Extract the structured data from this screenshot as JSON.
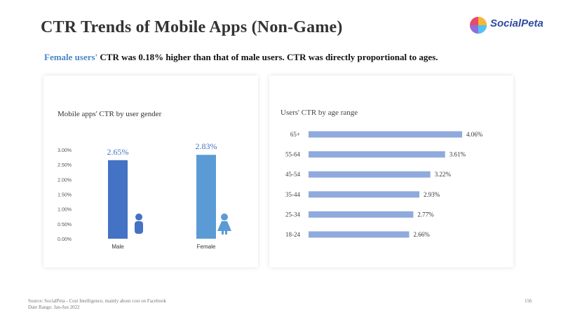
{
  "title": "CTR Trends of Mobile Apps (Non-Game)",
  "logo": {
    "text": "SocialPeta"
  },
  "subtitle": {
    "highlight": "Female users'",
    "rest": " CTR was 0.18% higher than that of male users. CTR was directly proportional to ages."
  },
  "footer": {
    "source": "Source: SocialPeta - Cost Intelligence, mainly about cost on Facebook",
    "date_range": "Date Range: Jan-Jun 2022"
  },
  "page_number": "156",
  "colors": {
    "male": "#4472c4",
    "female": "#5b9bd5",
    "age_bar": "#8faadc",
    "label_blue": "#4472c4"
  },
  "chart_data": [
    {
      "type": "bar",
      "title": "Mobile apps' CTR by user gender",
      "categories": [
        "Male",
        "Female"
      ],
      "values": [
        2.65,
        2.83
      ],
      "value_labels": [
        "2.65%",
        "2.83%"
      ],
      "ylim": [
        0,
        3.0
      ],
      "yticks": [
        0,
        0.5,
        1.0,
        1.5,
        2.0,
        2.5,
        3.0
      ],
      "ytick_labels": [
        "0.00%",
        "0.50%",
        "1.00%",
        "1.50%",
        "2.00%",
        "2.50%",
        "3.00%"
      ],
      "xlabel": "",
      "ylabel": ""
    },
    {
      "type": "bar",
      "orientation": "horizontal",
      "title": "Users' CTR by age range",
      "categories": [
        "65+",
        "55-64",
        "45-54",
        "35-44",
        "25-34",
        "18-24"
      ],
      "values": [
        4.06,
        3.61,
        3.22,
        2.93,
        2.77,
        2.66
      ],
      "value_labels": [
        "4.06%",
        "3.61%",
        "3.22%",
        "2.93%",
        "2.77%",
        "2.66%"
      ],
      "xlim": [
        0,
        4.06
      ],
      "xlabel": "",
      "ylabel": ""
    }
  ]
}
